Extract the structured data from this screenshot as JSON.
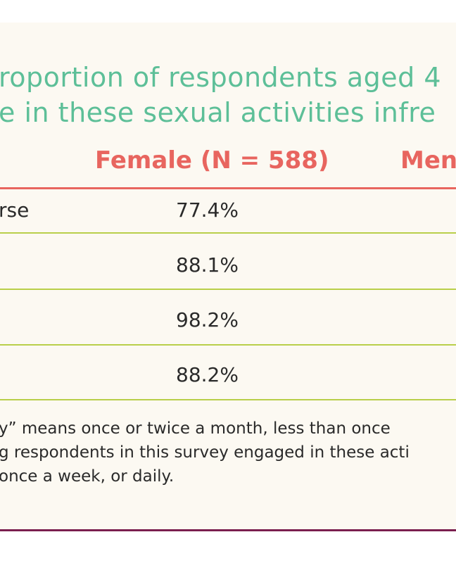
{
  "title": {
    "line1": "roportion of respondents aged 4",
    "line2": "e in these sexual activities infre"
  },
  "table": {
    "columns": [
      "Female (N = 588)",
      "Men"
    ],
    "rows": [
      {
        "label": "rse",
        "female": "77.4%"
      },
      {
        "label": "",
        "female": "88.1%"
      },
      {
        "label": "",
        "female": "98.2%"
      },
      {
        "label": "",
        "female": "88.2%"
      }
    ]
  },
  "footnote": [
    "y” means once or twice a month, less than once",
    "g respondents in this survey engaged in these acti",
    "once a week, or daily."
  ],
  "colors": {
    "title": "#5dbf98",
    "header": "#e8655f",
    "row_rule": "#b9cf4a",
    "bottom_rule": "#7a1f4f",
    "panel_bg": "#fcf9f2"
  }
}
